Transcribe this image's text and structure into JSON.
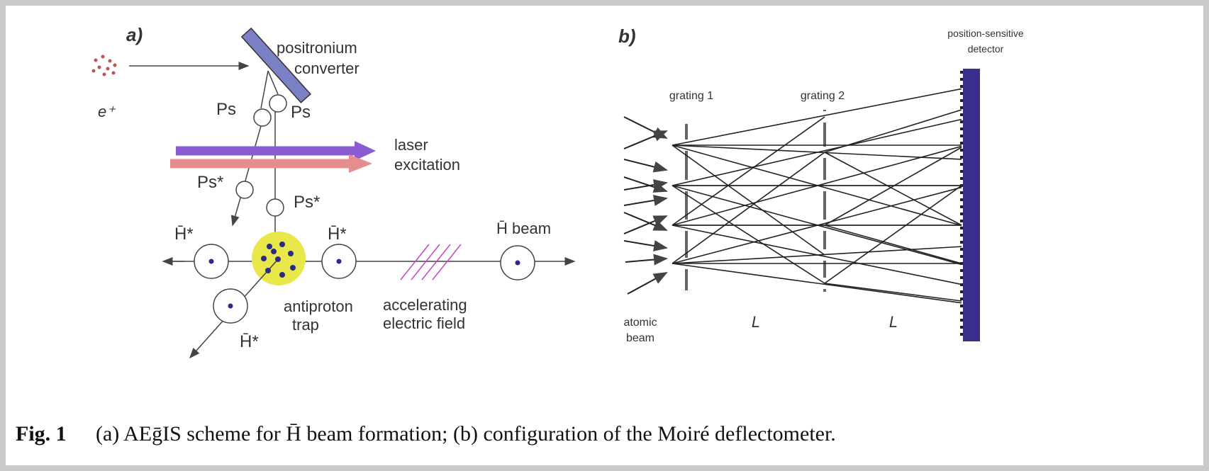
{
  "panel_a": {
    "label": "a)",
    "converter": [
      "positronium",
      "converter"
    ],
    "positron": "e⁺",
    "ps": [
      "Ps",
      "Ps"
    ],
    "laser": [
      "laser",
      "excitation"
    ],
    "ps_excited": [
      "Ps*",
      "Ps*"
    ],
    "hbar_excited": [
      "H̄*",
      "H̄*",
      "H̄*"
    ],
    "hbar_beam": "H̄ beam",
    "trap": [
      "antiproton",
      "trap"
    ],
    "field": [
      "accelerating",
      "electric field"
    ]
  },
  "panel_b": {
    "label": "b)",
    "detector": [
      "position-sensitive",
      "detector"
    ],
    "grating1": "grating 1",
    "grating2": "grating 2",
    "source": [
      "atomic",
      "beam"
    ],
    "distance": [
      "L",
      "L"
    ]
  },
  "caption": {
    "label": "Fig. 1",
    "text": "(a) AEḡIS scheme for H̄ beam formation; (b) configuration of the Moiré deflectometer."
  }
}
